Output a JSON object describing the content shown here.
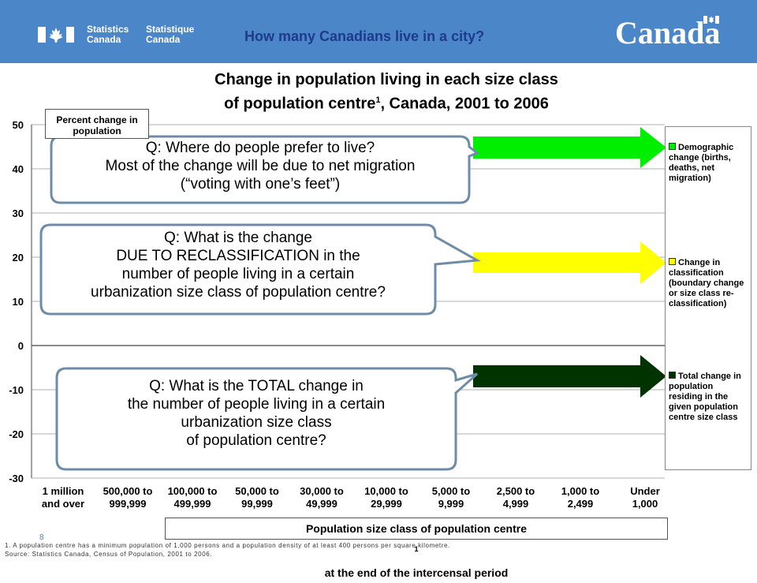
{
  "header": {
    "brand_en": "Statistics\nCanada",
    "brand_fr": "Statistique\nCanada",
    "question": "How many Canadians live in a city?",
    "wordmark": "Canada"
  },
  "chart_title_line1": "Change in population living in each size class",
  "chart_title_line2_pre": "of population centre",
  "chart_title_sup": "1",
  "chart_title_line2_post": ", Canada, 2001 to 2006",
  "y_axis_title": "Percent change in population",
  "x_axis_title_pre": "Population size class of population centre",
  "x_axis_title_sup": "1",
  "x_axis_title_post": " at the end of the intercensal period",
  "callouts": [
    {
      "lines": [
        "Q: Where do people prefer to live?",
        "Most of the change will be due to net migration",
        "(“voting with one’s feet”)"
      ]
    },
    {
      "lines": [
        "Q: What is the change",
        "DUE TO RECLASSIFICATION in the",
        "number of people living in a certain",
        "urbanization size class of population centre?"
      ]
    },
    {
      "lines": [
        "Q: What is the TOTAL change in",
        "the number of people living in a certain",
        "urbanization size class",
        "of population centre?"
      ]
    }
  ],
  "legend": [
    {
      "label": "Demographic change (births, deaths, net migration)",
      "color": "#00ee00"
    },
    {
      "label": "Change in classification (boundary change or size class re-classification)",
      "color": "#ffff00"
    },
    {
      "label": "Total change in population residing in the given population centre size class",
      "color": "#003300"
    }
  ],
  "footnote_1": "1. A population centre has a minimum population of 1,000 persons and a population density of at least 400 persons per square kilometre.",
  "footnote_2": "Source: Statistics Canada, Census of Population, 2001 to 2006.",
  "page_number": "8",
  "chart_data": {
    "type": "bar",
    "categories": [
      [
        "1 million",
        "and over"
      ],
      [
        "500,000 to",
        "999,999"
      ],
      [
        "100,000 to",
        "499,999"
      ],
      [
        "50,000 to",
        "99,999"
      ],
      [
        "30,000 to",
        "49,999"
      ],
      [
        "10,000 to",
        "29,999"
      ],
      [
        "5,000 to",
        "9,999"
      ],
      [
        "2,500 to",
        "4,999"
      ],
      [
        "1,000 to",
        "2,499"
      ],
      [
        "Under",
        "1,000"
      ]
    ],
    "ylim": [
      -30,
      50
    ],
    "yticks": [
      50,
      40,
      30,
      20,
      10,
      0,
      -10,
      -20,
      -30
    ],
    "series": [],
    "grid": true,
    "legend_placement": "right"
  }
}
